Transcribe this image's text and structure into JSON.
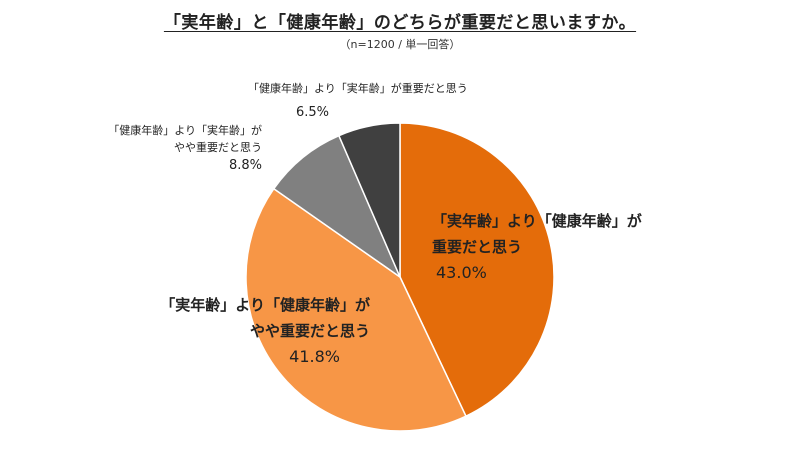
{
  "title": "「実年齢」と「健康年齢」のどちらが重要だと思いますか。",
  "subtitle": "（n=1200 / 単一回答）",
  "chart_data": {
    "type": "pie",
    "title": "「実年齢」と「健康年齢」のどちらが重要だと思いますか。",
    "subtitle": "（n=1200 / 単一回答）",
    "start_angle_deg": 0,
    "direction": "clockwise",
    "slices": [
      {
        "label_lines": [
          "「実年齢」より「健康年齢」が",
          "重要だと思う"
        ],
        "value": 43.0,
        "value_label": "43.0%",
        "color": "#E46C0A"
      },
      {
        "label_lines": [
          "「実年齢」より「健康年齢」が",
          "やや重要だと思う"
        ],
        "value": 41.8,
        "value_label": "41.8%",
        "color": "#F79646"
      },
      {
        "label_lines": [
          "「健康年齢」より「実年齢」が",
          "やや重要だと思う"
        ],
        "value": 8.8,
        "value_label": "8.8%",
        "color": "#808080"
      },
      {
        "label_lines": [
          "「健康年齢」より「実年齢」が重要だと思う"
        ],
        "value": 6.5,
        "value_label": "6.5%",
        "color": "#404040"
      }
    ]
  }
}
